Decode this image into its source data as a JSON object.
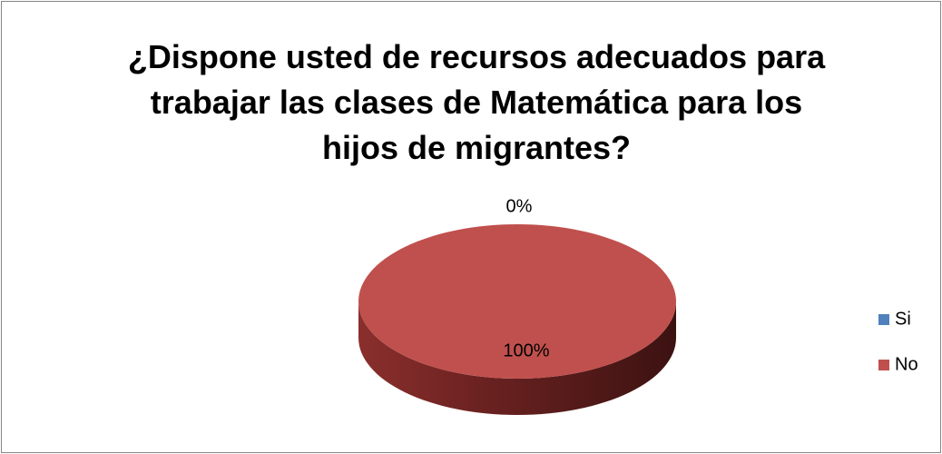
{
  "chart_data": {
    "type": "pie",
    "title": "¿Dispone usted de recursos adecuados para\ntrabajar las clases de Matemática para los\nhijos de migrantes?",
    "categories": [
      "Si",
      "No"
    ],
    "values": [
      0,
      100
    ],
    "value_labels": [
      "0%",
      "100%"
    ],
    "colors": [
      "#4f81bd",
      "#c0504d"
    ],
    "legend": "right",
    "three_d": true
  }
}
